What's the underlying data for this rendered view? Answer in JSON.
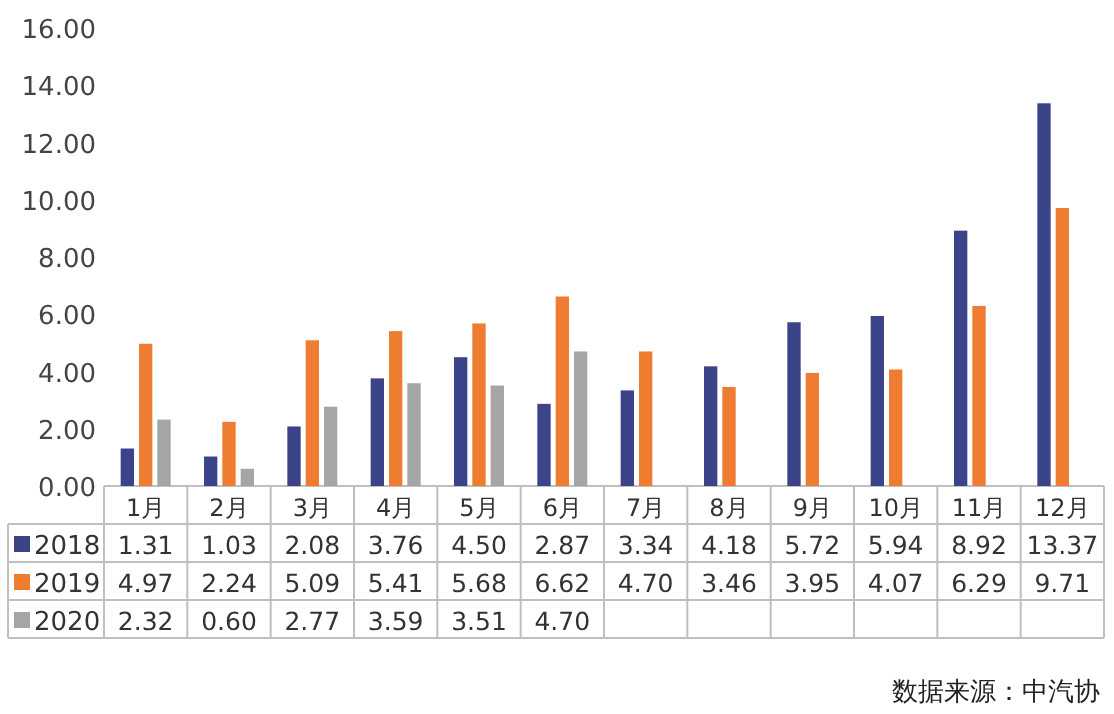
{
  "chart_data": {
    "type": "bar",
    "categories": [
      "1月",
      "2月",
      "3月",
      "4月",
      "5月",
      "6月",
      "7月",
      "8月",
      "9月",
      "10月",
      "11月",
      "12月"
    ],
    "series": [
      {
        "name": "2018",
        "color": "#3c4489",
        "values": [
          1.31,
          1.03,
          2.08,
          3.76,
          4.5,
          2.87,
          3.34,
          4.18,
          5.72,
          5.94,
          8.92,
          13.37
        ]
      },
      {
        "name": "2019",
        "color": "#ee7d31",
        "values": [
          4.97,
          2.24,
          5.09,
          5.41,
          5.68,
          6.62,
          4.7,
          3.46,
          3.95,
          4.07,
          6.29,
          9.71
        ]
      },
      {
        "name": "2020",
        "color": "#a5a5a5",
        "values": [
          2.32,
          0.6,
          2.77,
          3.59,
          3.51,
          4.7,
          null,
          null,
          null,
          null,
          null,
          null
        ]
      }
    ],
    "value_labels": [
      [
        "1.31",
        "1.03",
        "2.08",
        "3.76",
        "4.50",
        "2.87",
        "3.34",
        "4.18",
        "5.72",
        "5.94",
        "8.92",
        "13.37"
      ],
      [
        "4.97",
        "2.24",
        "5.09",
        "5.41",
        "5.68",
        "6.62",
        "4.70",
        "3.46",
        "3.95",
        "4.07",
        "6.29",
        "9.71"
      ],
      [
        "2.32",
        "0.60",
        "2.77",
        "3.59",
        "3.51",
        "4.70",
        null,
        null,
        null,
        null,
        null,
        null
      ]
    ],
    "ylim": [
      0,
      16
    ],
    "yticks": [
      {
        "value": 0,
        "label": "0.00"
      },
      {
        "value": 2,
        "label": "2.00"
      },
      {
        "value": 4,
        "label": "4.00"
      },
      {
        "value": 6,
        "label": "6.00"
      },
      {
        "value": 8,
        "label": "8.00"
      },
      {
        "value": 10,
        "label": "10.00"
      },
      {
        "value": 12,
        "label": "12.00"
      },
      {
        "value": 14,
        "label": "14.00"
      },
      {
        "value": 16,
        "label": "16.00"
      }
    ],
    "grid": false,
    "legend": "bottom",
    "annotations": [
      "数据来源：中汽协"
    ]
  }
}
